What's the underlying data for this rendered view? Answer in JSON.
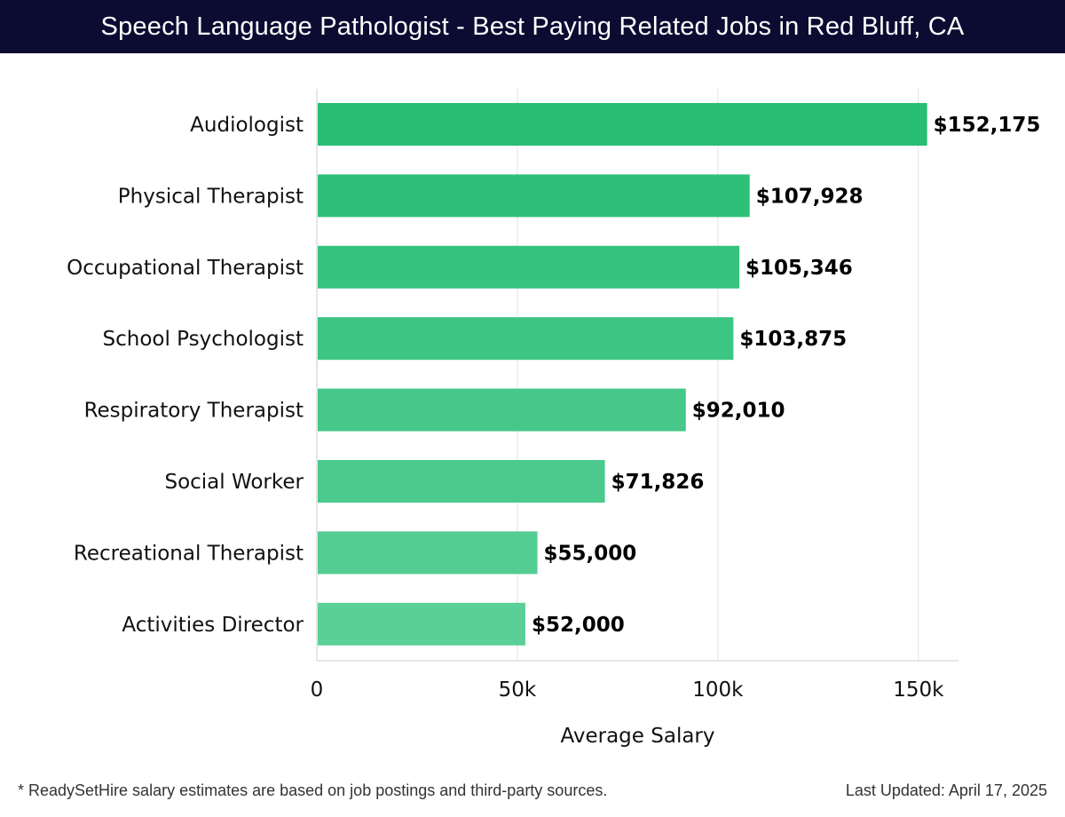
{
  "header": {
    "title": "Speech Language Pathologist - Best Paying Related Jobs in Red Bluff, CA"
  },
  "chart_data": {
    "type": "bar",
    "orientation": "horizontal",
    "title": "Speech Language Pathologist - Best Paying Related Jobs in Red Bluff, CA",
    "xlabel": "Average Salary",
    "ylabel": "",
    "categories": [
      "Audiologist",
      "Physical Therapist",
      "Occupational Therapist",
      "School Psychologist",
      "Respiratory Therapist",
      "Social Worker",
      "Recreational Therapist",
      "Activities Director"
    ],
    "values": [
      152175,
      107928,
      105346,
      103875,
      92010,
      71826,
      55000,
      52000
    ],
    "value_labels": [
      "$152,175",
      "$107,928",
      "$105,346",
      "$103,875",
      "$92,010",
      "$71,826",
      "$55,000",
      "$52,000"
    ],
    "xlim": [
      0,
      160000
    ],
    "xticks": [
      0,
      50000,
      100000,
      150000
    ],
    "xtick_labels": [
      "0",
      "50k",
      "100k",
      "150k"
    ],
    "grid": "vertical",
    "colors": {
      "bar_top": "#27be74",
      "bar_bottom": "#5bcf98",
      "grid": "#e3e3e3",
      "axis": "#cccccc",
      "text": "#111111"
    }
  },
  "footer": {
    "note": "* ReadySetHire salary estimates are based on job postings and third-party sources.",
    "updated": "Last Updated: April 17, 2025"
  }
}
